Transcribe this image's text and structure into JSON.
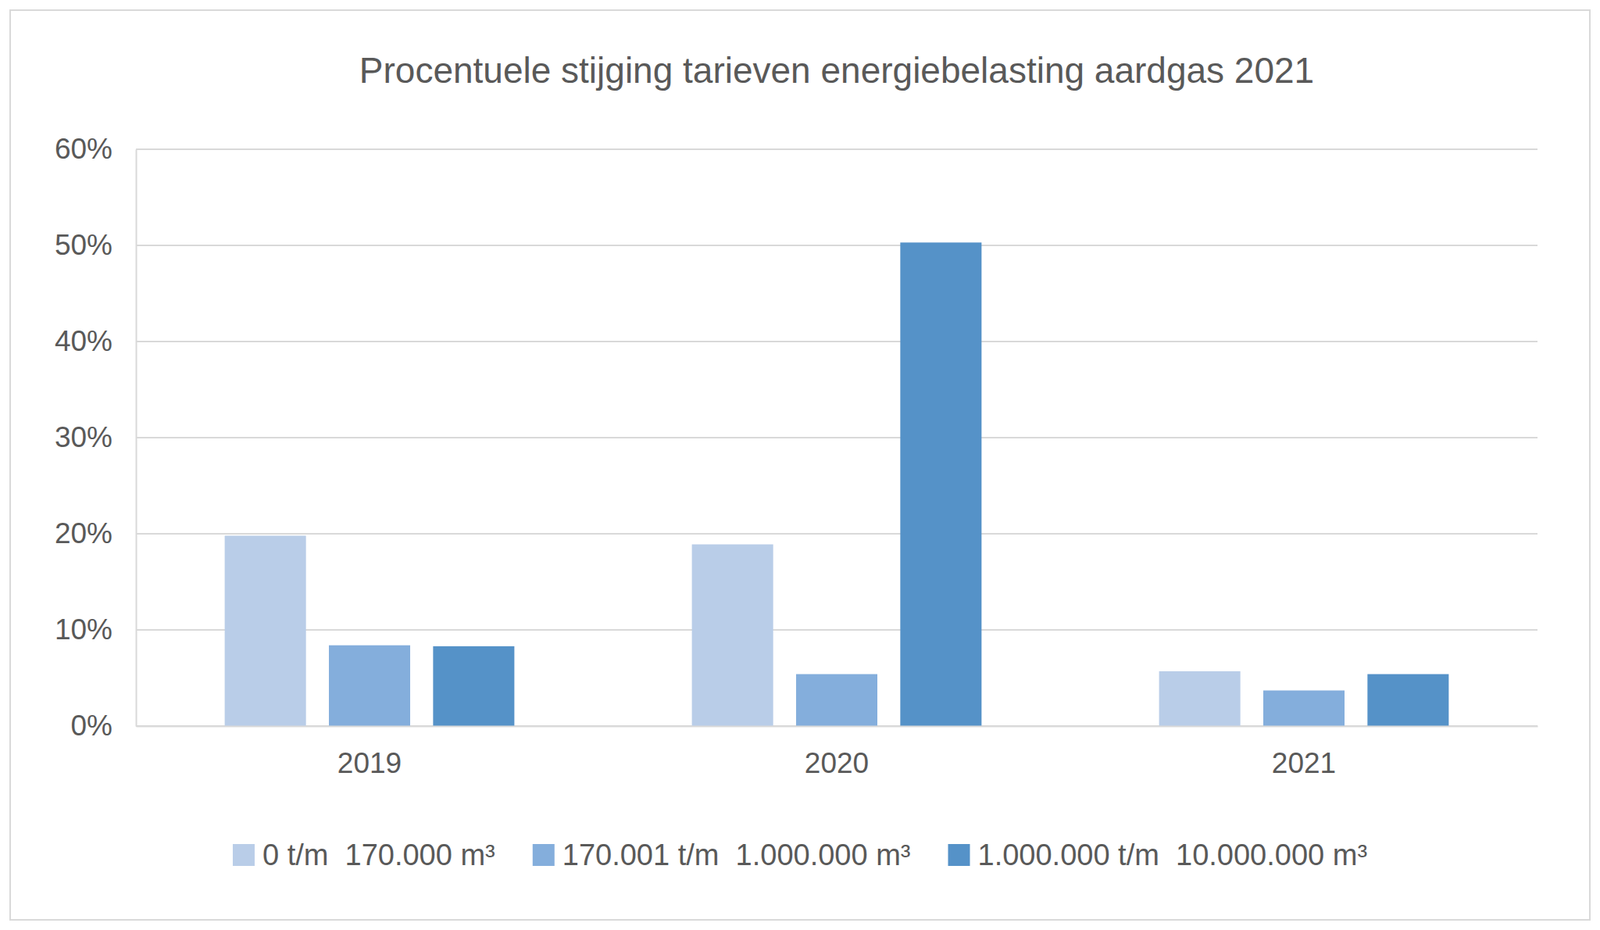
{
  "chart_data": {
    "type": "bar",
    "title": "Procentuele stijging tarieven energiebelasting aardgas 2021",
    "categories": [
      "2019",
      "2020",
      "2021"
    ],
    "series": [
      {
        "name": "0 t/m  170.000 m³",
        "color": "#b9cde8",
        "values": [
          19.8,
          18.9,
          5.7
        ]
      },
      {
        "name": "170.001 t/m  1.000.000 m³",
        "color": "#84aedc",
        "values": [
          8.4,
          5.4,
          3.7
        ]
      },
      {
        "name": "1.000.000 t/m  10.000.000 m³",
        "color": "#5592c8",
        "values": [
          8.3,
          50.3,
          5.4
        ]
      }
    ],
    "ylim": [
      0,
      60
    ],
    "yticks": [
      {
        "value": 0,
        "label": "0%"
      },
      {
        "value": 10,
        "label": "10%"
      },
      {
        "value": 20,
        "label": "20%"
      },
      {
        "value": 30,
        "label": "30%"
      },
      {
        "value": 40,
        "label": "40%"
      },
      {
        "value": 50,
        "label": "50%"
      },
      {
        "value": 60,
        "label": "60%"
      }
    ],
    "grid": true,
    "legend": "bottom"
  }
}
